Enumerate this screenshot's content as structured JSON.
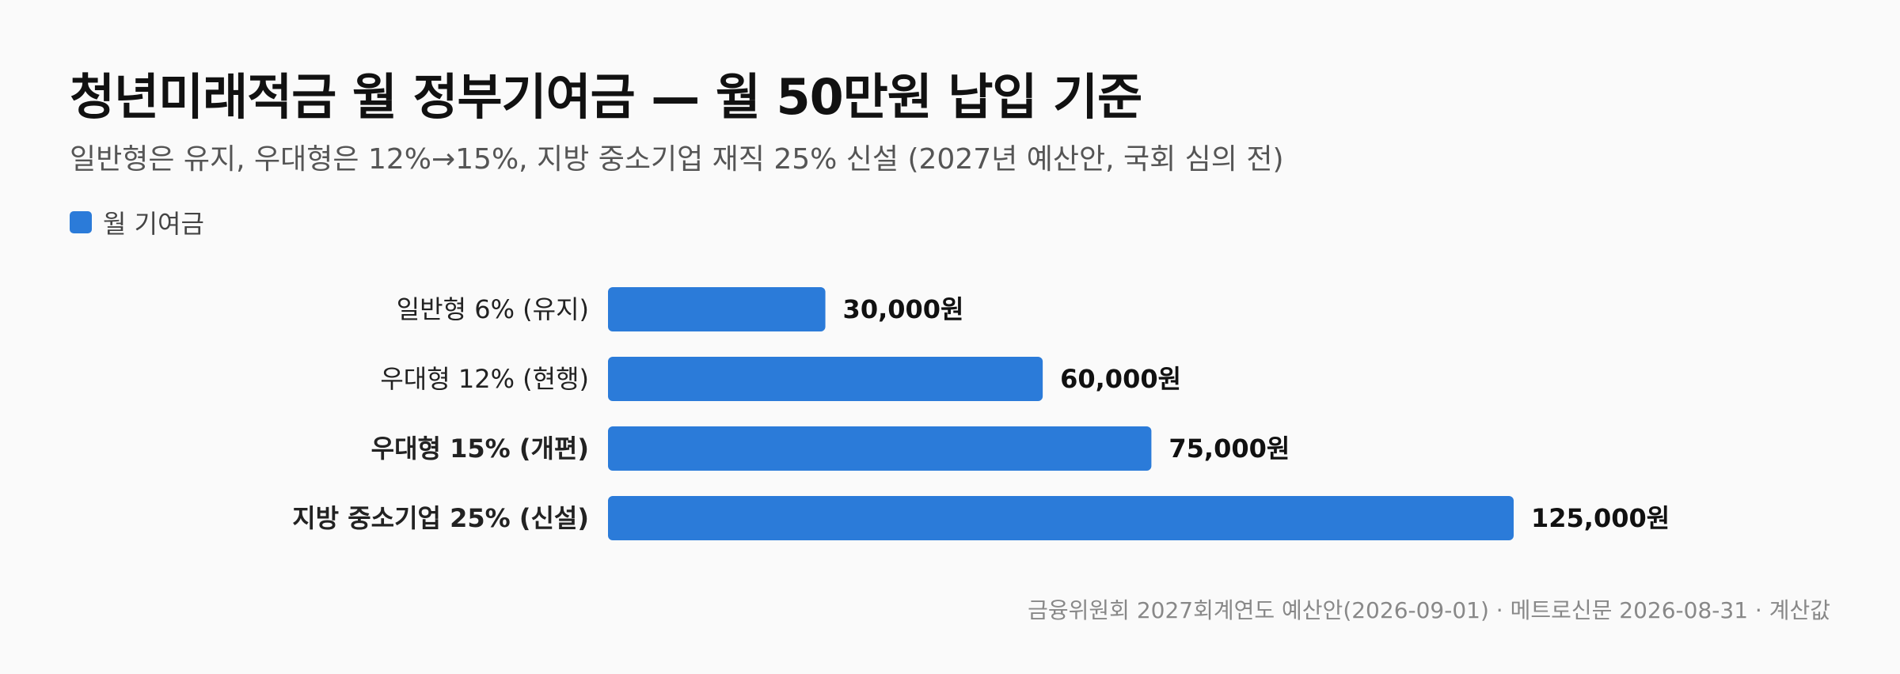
{
  "title": "청년미래적금 월 정부기여금 — 월 50만원 납입 기준",
  "subtitle": "일반형은 유지, 우대형은 12%→15%, 지방 중소기업 재직 25% 신설 (2027년 예산안, 국회 심의 전)",
  "legend": {
    "label": "월 기여금",
    "color": "#2b7bd9"
  },
  "footer": "금융위원회 2027회계연도 예산안(2026-09-01) · 메트로신문 2026-08-31 · 계산값",
  "chart_data": {
    "type": "bar",
    "orientation": "horizontal",
    "categories": [
      "일반형 6% (유지)",
      "우대형 12% (현행)",
      "우대형 15% (개편)",
      "지방 중소기업 25% (신설)"
    ],
    "category_bold": [
      false,
      false,
      true,
      true
    ],
    "values": [
      30000,
      60000,
      75000,
      125000
    ],
    "value_labels": [
      "30,000원",
      "60,000원",
      "75,000원",
      "125,000원"
    ],
    "series": [
      {
        "name": "월 기여금",
        "values": [
          30000,
          60000,
          75000,
          125000
        ]
      }
    ],
    "bar_color": "#2b7bd9",
    "xlim": [
      0,
      125000
    ],
    "grid": false,
    "legend_position": "top-left"
  }
}
